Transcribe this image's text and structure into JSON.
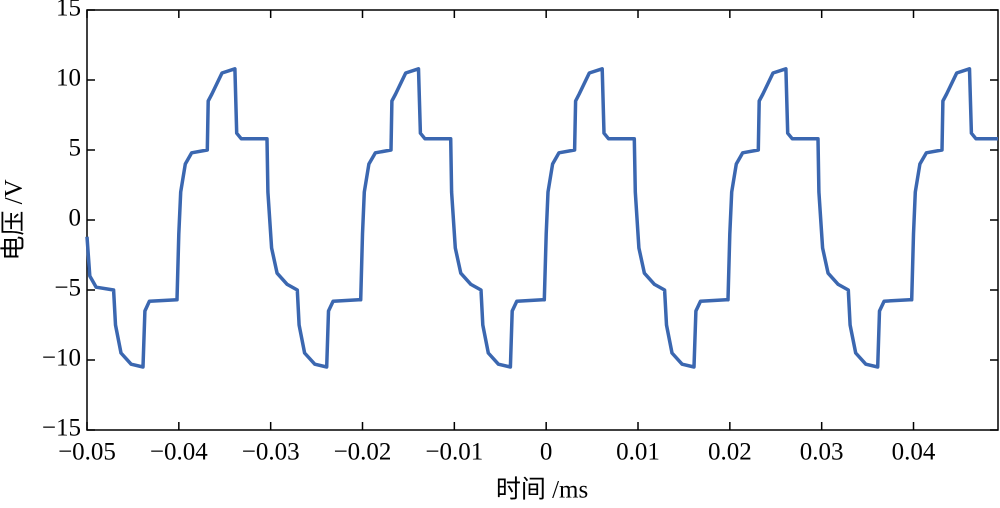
{
  "chart_data": {
    "type": "line",
    "xlabel": "时间 /ms",
    "ylabel": "电压 /V",
    "color": "#3b67b0",
    "xlim": [
      -0.05,
      0.0492
    ],
    "ylim": [
      -15,
      15
    ],
    "xticks": [
      {
        "value": -0.05,
        "label": "−0.05"
      },
      {
        "value": -0.04,
        "label": "−0.04"
      },
      {
        "value": -0.03,
        "label": "−0.03"
      },
      {
        "value": -0.02,
        "label": "−0.02"
      },
      {
        "value": -0.01,
        "label": "−0.01"
      },
      0,
      0.01,
      0.02,
      0.03,
      0.04
    ],
    "yticks": [
      {
        "value": -15,
        "label": "−15"
      },
      {
        "value": -10,
        "label": "−10"
      },
      {
        "value": -5,
        "label": "−5"
      },
      0,
      5,
      10,
      15
    ],
    "x": [
      -0.05,
      -0.0497,
      -0.049,
      -0.0471,
      -0.0469,
      -0.0463,
      -0.0452,
      -0.0439,
      -0.0437,
      -0.0432,
      -0.0402,
      -0.04,
      -0.0398,
      -0.0393,
      -0.0386,
      -0.0369,
      -0.0368,
      -0.0364,
      -0.0353,
      -0.0339,
      -0.0337,
      -0.0332,
      -0.0304,
      -0.0303,
      -0.0299,
      -0.0293,
      -0.0282,
      -0.0271,
      -0.0269,
      -0.0263,
      -0.0252,
      -0.0239,
      -0.0237,
      -0.0232,
      -0.0204,
      -0.0202,
      -0.02,
      -0.0198,
      -0.0193,
      -0.0186,
      -0.0169,
      -0.0168,
      -0.0164,
      -0.0153,
      -0.0139,
      -0.0137,
      -0.0132,
      -0.0104,
      -0.0103,
      -0.0099,
      -0.0093,
      -0.0082,
      -0.0071,
      -0.0069,
      -0.0063,
      -0.0052,
      -0.0039,
      -0.0037,
      -0.0032,
      -0.0004,
      -0.0002,
      0,
      0.0002,
      0.0007,
      0.0014,
      0.0031,
      0.0032,
      0.0036,
      0.0047,
      0.0061,
      0.0063,
      0.0068,
      0.0096,
      0.0097,
      0.0101,
      0.0107,
      0.0118,
      0.0129,
      0.0131,
      0.0137,
      0.0148,
      0.0161,
      0.0163,
      0.0168,
      0.0196,
      0.0198,
      0.02,
      0.0202,
      0.0207,
      0.0214,
      0.0231,
      0.0232,
      0.0236,
      0.0247,
      0.0261,
      0.0263,
      0.0268,
      0.0296,
      0.0297,
      0.0301,
      0.0307,
      0.0318,
      0.0329,
      0.0331,
      0.0337,
      0.0348,
      0.0361,
      0.0363,
      0.0368,
      0.0396,
      0.0398,
      0.04,
      0.0402,
      0.0407,
      0.0414,
      0.0431,
      0.0432,
      0.0436,
      0.0447,
      0.0461,
      0.0463,
      0.0468,
      0.0492
    ],
    "values": [
      -1.2,
      -4,
      -4.8,
      -5,
      -7.5,
      -9.5,
      -10.3,
      -10.5,
      -6.5,
      -5.8,
      -5.7,
      -1,
      2,
      4,
      4.8,
      5,
      8.5,
      9,
      10.5,
      10.8,
      6.2,
      5.8,
      5.8,
      2,
      -2,
      -3.8,
      -4.6,
      -5,
      -7.5,
      -9.5,
      -10.3,
      -10.5,
      -6.5,
      -5.8,
      -5.7,
      -5.7,
      -1,
      2,
      4,
      4.8,
      5,
      8.5,
      9,
      10.5,
      10.8,
      6.2,
      5.8,
      5.8,
      2,
      -2,
      -3.8,
      -4.6,
      -5,
      -7.5,
      -9.5,
      -10.3,
      -10.5,
      -6.5,
      -5.8,
      -5.7,
      -5.7,
      -1,
      2,
      4,
      4.8,
      5,
      8.5,
      9,
      10.5,
      10.8,
      6.2,
      5.8,
      5.8,
      2,
      -2,
      -3.8,
      -4.6,
      -5,
      -7.5,
      -9.5,
      -10.3,
      -10.5,
      -6.5,
      -5.8,
      -5.7,
      -5.7,
      -1,
      2,
      4,
      4.8,
      5,
      8.5,
      9,
      10.5,
      10.8,
      6.2,
      5.8,
      5.8,
      2,
      -2,
      -3.8,
      -4.6,
      -5,
      -7.5,
      -9.5,
      -10.3,
      -10.5,
      -6.5,
      -5.8,
      -5.7,
      -5.7,
      -1,
      2,
      4,
      4.8,
      5,
      8.5,
      9,
      10.5,
      10.8,
      6.2,
      5.8,
      5.8
    ]
  }
}
